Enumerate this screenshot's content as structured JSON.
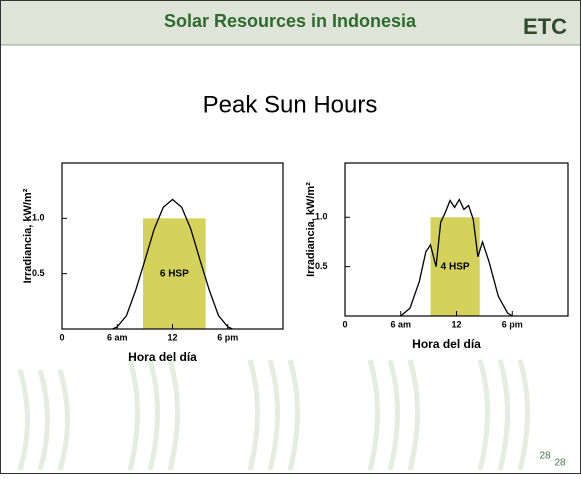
{
  "slide": {
    "title": "Solar Resources in Indonesia",
    "logo": "ETC",
    "subtitle": "Peak Sun Hours",
    "page_number": "28"
  },
  "chart_data": [
    {
      "type": "line",
      "ylabel": "Irradiancia, kW/m²",
      "xlabel": "Hora del día",
      "x": [
        5.5,
        6,
        7,
        8,
        9,
        10,
        11,
        12,
        13,
        14,
        15,
        16,
        17,
        18,
        18.5
      ],
      "values": [
        0,
        0.02,
        0.12,
        0.35,
        0.62,
        0.9,
        1.1,
        1.17,
        1.1,
        0.9,
        0.62,
        0.35,
        0.12,
        0.02,
        0
      ],
      "color": "#000000",
      "hsp_block": {
        "x0": 8.8,
        "x1": 15.6,
        "value": 1.0,
        "label": "6 HSP",
        "color": "#d4d25a"
      },
      "xlim": [
        0,
        24
      ],
      "xticks": [
        0,
        {
          "value": 6,
          "label": "6 am"
        },
        12,
        {
          "value": 18,
          "label": "6 pm"
        }
      ],
      "ylim": [
        0,
        1.5
      ],
      "yticks": [
        0.5,
        {
          "value": 1,
          "label": "1.0"
        }
      ]
    },
    {
      "type": "line",
      "ylabel": "Irradiancia, kW/m²",
      "xlabel": "Hora del día",
      "x": [
        6,
        7,
        8,
        8.7,
        9.2,
        9.8,
        10.3,
        10.8,
        11.3,
        11.8,
        12.3,
        12.8,
        13.3,
        13.8,
        14.3,
        14.8,
        15.5,
        16.5,
        17.5,
        18
      ],
      "values": [
        0,
        0.08,
        0.35,
        0.65,
        0.72,
        0.5,
        0.95,
        1.05,
        1.17,
        1.1,
        1.18,
        1.08,
        1.12,
        0.98,
        0.6,
        0.75,
        0.55,
        0.2,
        0.03,
        0
      ],
      "color": "#000000",
      "hsp_block": {
        "x0": 9.2,
        "x1": 14.5,
        "value": 1.0,
        "label": "4 HSP",
        "color": "#d4d25a"
      },
      "xlim": [
        0,
        24
      ],
      "xticks": [
        0,
        {
          "value": 6,
          "label": "6 am"
        },
        12,
        {
          "value": 18,
          "label": "6 pm"
        }
      ],
      "ylim": [
        0,
        1.55
      ],
      "yticks": [
        0.5,
        {
          "value": 1,
          "label": "1.0"
        }
      ]
    }
  ]
}
